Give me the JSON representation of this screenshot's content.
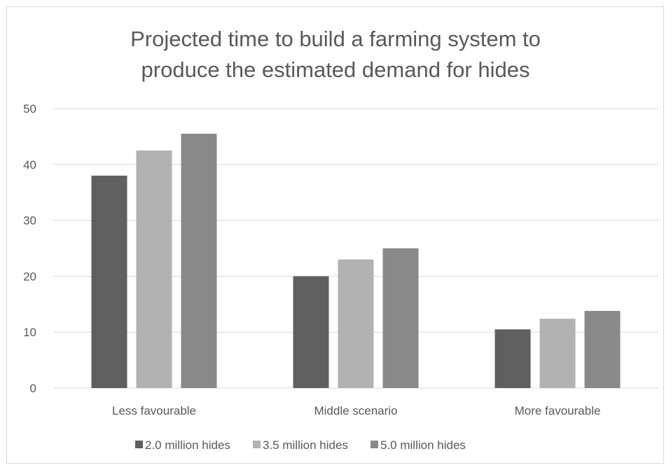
{
  "chart_data": {
    "type": "bar",
    "title_lines": [
      "Projected time to build a farming system to",
      "produce the estimated demand for hides"
    ],
    "categories": [
      "Less favourable",
      "Middle scenario",
      "More favourable"
    ],
    "series": [
      {
        "name": "2.0 million hides",
        "values": [
          38,
          20,
          10.5
        ],
        "color": "#5f5f5f"
      },
      {
        "name": "3.5 million hides",
        "values": [
          42.5,
          23,
          12.4
        ],
        "color": "#b2b2b2"
      },
      {
        "name": "5.0 million hides",
        "values": [
          45.5,
          25,
          13.8
        ],
        "color": "#898989"
      }
    ],
    "yticks": [
      0,
      10,
      20,
      30,
      40,
      50
    ],
    "ylim": [
      0,
      50
    ],
    "grid": true,
    "legend_position": "bottom",
    "gridline_color": "#d9d9d9",
    "text_color": "#595959"
  }
}
